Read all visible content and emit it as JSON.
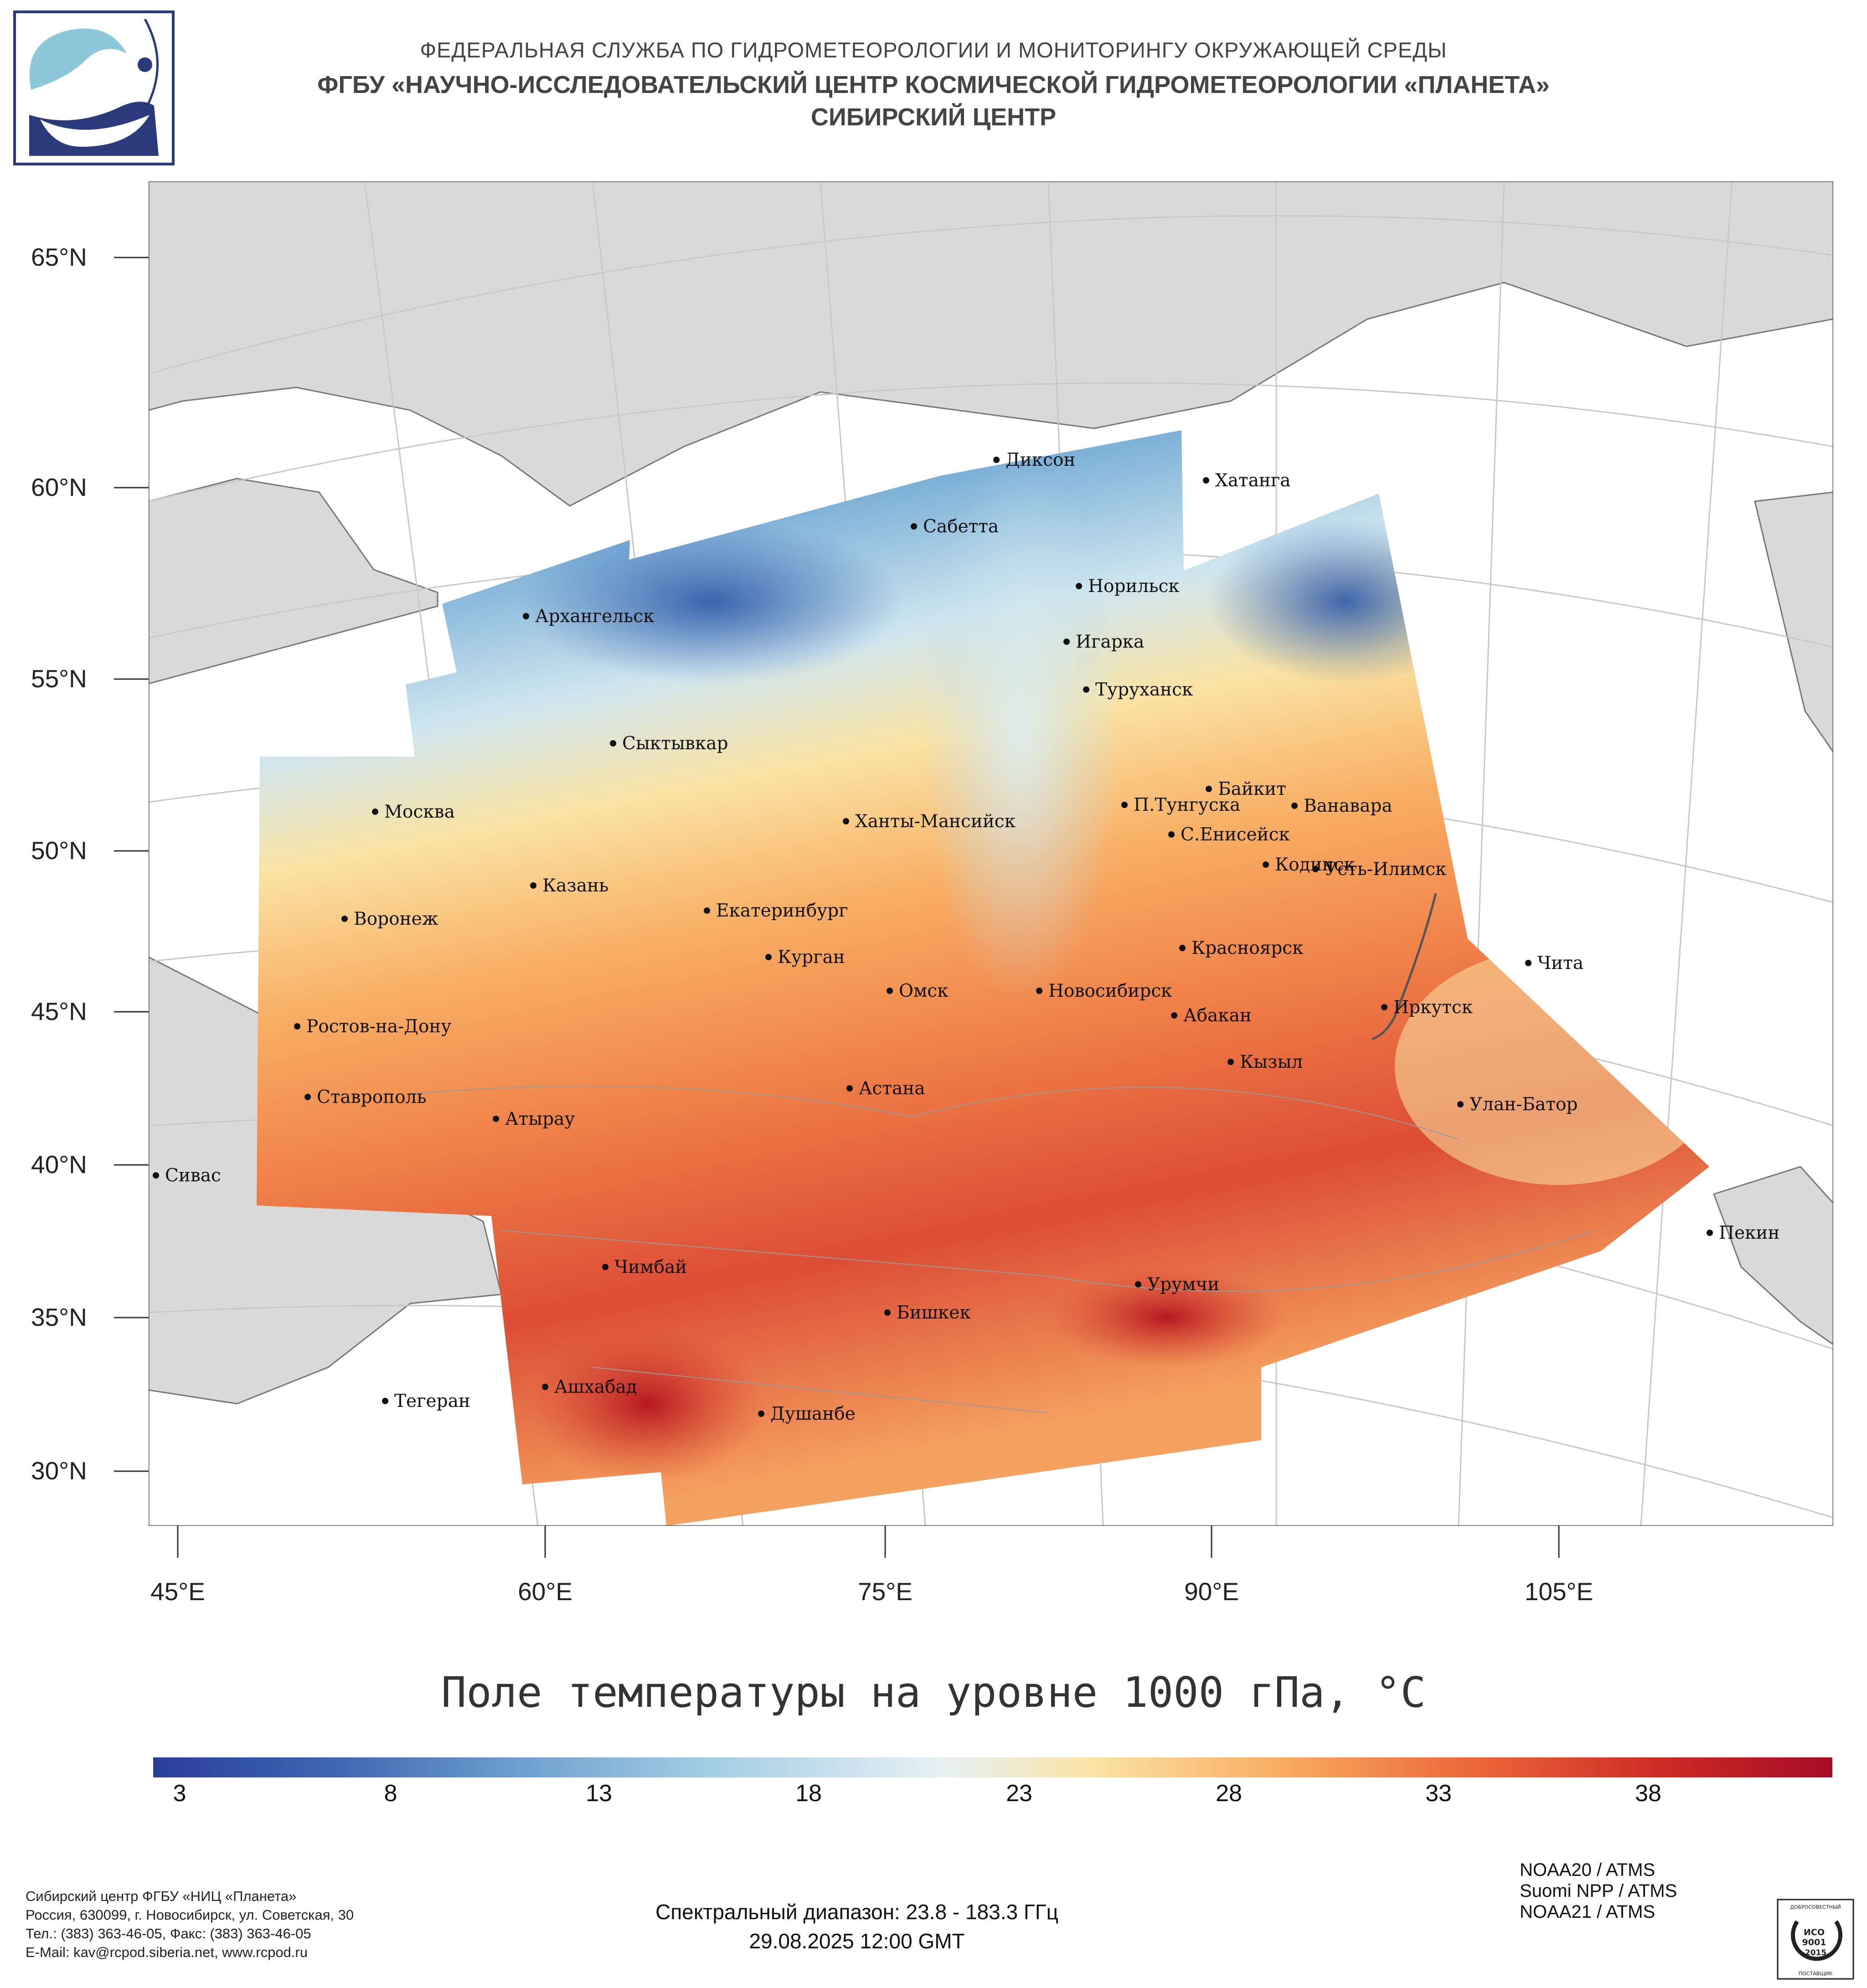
{
  "header": {
    "line1": "ФЕДЕРАЛЬНАЯ СЛУЖБА ПО ГИДРОМЕТЕОРОЛОГИИ И МОНИТОРИНГУ ОКРУЖАЮЩЕЙ СРЕДЫ",
    "line2": "ФГБУ «НАУЧНО-ИССЛЕДОВАТЕЛЬСКИЙ ЦЕНТР КОСМИЧЕСКОЙ ГИДРОМЕТЕОРОЛОГИИ «ПЛАНЕТА»",
    "line3": "СИБИРСКИЙ ЦЕНТР"
  },
  "map": {
    "title": "Поле температуры на уровне 1000 гПа, °С",
    "lat_labels": [
      "65°N",
      "60°N",
      "55°N",
      "50°N",
      "45°N",
      "40°N",
      "35°N",
      "30°N"
    ],
    "lon_labels": [
      "45°E",
      "60°E",
      "75°E",
      "90°E",
      "105°E"
    ],
    "cities": [
      "Диксон",
      "Хатанга",
      "Сабетта",
      "Норильск",
      "Архангельск",
      "Игарка",
      "Туруханск",
      "Сыктывкар",
      "Байкит",
      "П.Тунгуска",
      "Ванавара",
      "Москва",
      "Ханты-Мансийск",
      "С.Енисейск",
      "Кодинск",
      "Усть-Илимск",
      "Казань",
      "Екатеринбург",
      "Воронеж",
      "Красноярск",
      "Курган",
      "Чита",
      "Омск",
      "Новосибирск",
      "Иркутск",
      "Абакан",
      "Ростов-на-Дону",
      "Кызыл",
      "Ставрополь",
      "Астана",
      "Улан-Батор",
      "Атырау",
      "Сивас",
      "Пекин",
      "Чимбай",
      "Урумчи",
      "Бишкек",
      "Ашхабад",
      "Тегеран",
      "Душанбе"
    ]
  },
  "colorbar": {
    "min": 3,
    "max": 41,
    "tick_labels": [
      "3",
      "8",
      "13",
      "18",
      "23",
      "28",
      "33",
      "38"
    ],
    "colors": [
      "#2a3e9c",
      "#3f67b1",
      "#6fa0cf",
      "#a3cde4",
      "#e6f1f3",
      "#fbe3a4",
      "#f8ad62",
      "#ed6a3b",
      "#cc2a25",
      "#a50c26"
    ]
  },
  "footer": {
    "org": "Сибирский центр ФГБУ «НИЦ «Планета»",
    "address": "Россия, 630099, г. Новосибирск, ул. Советская, 30",
    "phone": "Тел.: (383) 363-46-05, Факс: (383) 363-46-05",
    "email": "E-Mail: kav@rcpod.siberia.net, www.rcpod.ru",
    "spectral": "Спектральный диапазон: 23.8 - 183.3 ГГц",
    "datetime": "29.08.2025 12:00 GMT",
    "satellites": [
      "NOAA20 / ATMS",
      "Suomi NPP / ATMS",
      "NOAA21 / ATMS"
    ]
  },
  "iso_badge": {
    "top": "ДОБРОСОВЕСТНЫЙ",
    "l1": "ИСО",
    "l2": "9001",
    "l3": "-2015",
    "bottom": "ПОСТАВЩИК"
  }
}
